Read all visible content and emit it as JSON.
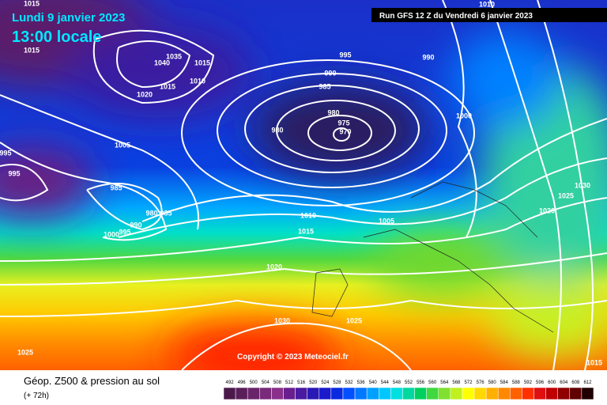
{
  "header": {
    "date": "Lundi 9 janvier 2023",
    "time": "13:00 locale",
    "run": "Run GFS 12 Z du Vendredi 6 janvier 2023"
  },
  "copyright": "Copyright © 2023 Meteociel.fr",
  "footer": {
    "title": "Géop. Z500 & pression au sol",
    "lead": "(+ 72h)"
  },
  "colorbar": {
    "levels": [
      492,
      496,
      500,
      504,
      508,
      512,
      516,
      520,
      524,
      528,
      532,
      536,
      540,
      544,
      548,
      552,
      556,
      560,
      564,
      568,
      572,
      576,
      580,
      584,
      588,
      592,
      596,
      600,
      604,
      608,
      612
    ],
    "colors": [
      "#4b1a4b",
      "#5a1f5a",
      "#6a246a",
      "#7a2a7a",
      "#8a308a",
      "#6a1f8f",
      "#4a1aa0",
      "#2a1ab5",
      "#1a1acc",
      "#0a2ae0",
      "#0050ff",
      "#0078ff",
      "#00a0ff",
      "#00c8ff",
      "#00e0e0",
      "#00d8a0",
      "#00d060",
      "#40d840",
      "#80e030",
      "#c0f020",
      "#ffff00",
      "#ffd800",
      "#ffb000",
      "#ff8800",
      "#ff6000",
      "#ff3000",
      "#e01010",
      "#c00000",
      "#900000",
      "#600000",
      "#200000"
    ]
  },
  "isobar_labels": [
    "1015",
    "1015",
    "1040",
    "1035",
    "1015",
    "1010",
    "1015",
    "1020",
    "995",
    "990",
    "990",
    "985",
    "980",
    "975",
    "970",
    "980",
    "1000",
    "1010",
    "1005",
    "995",
    "995",
    "985",
    "980",
    "985",
    "990",
    "995",
    "1000",
    "1010",
    "1015",
    "1005",
    "1020",
    "1025",
    "1030",
    "1020",
    "1030",
    "1025",
    "1025",
    "1015"
  ]
}
